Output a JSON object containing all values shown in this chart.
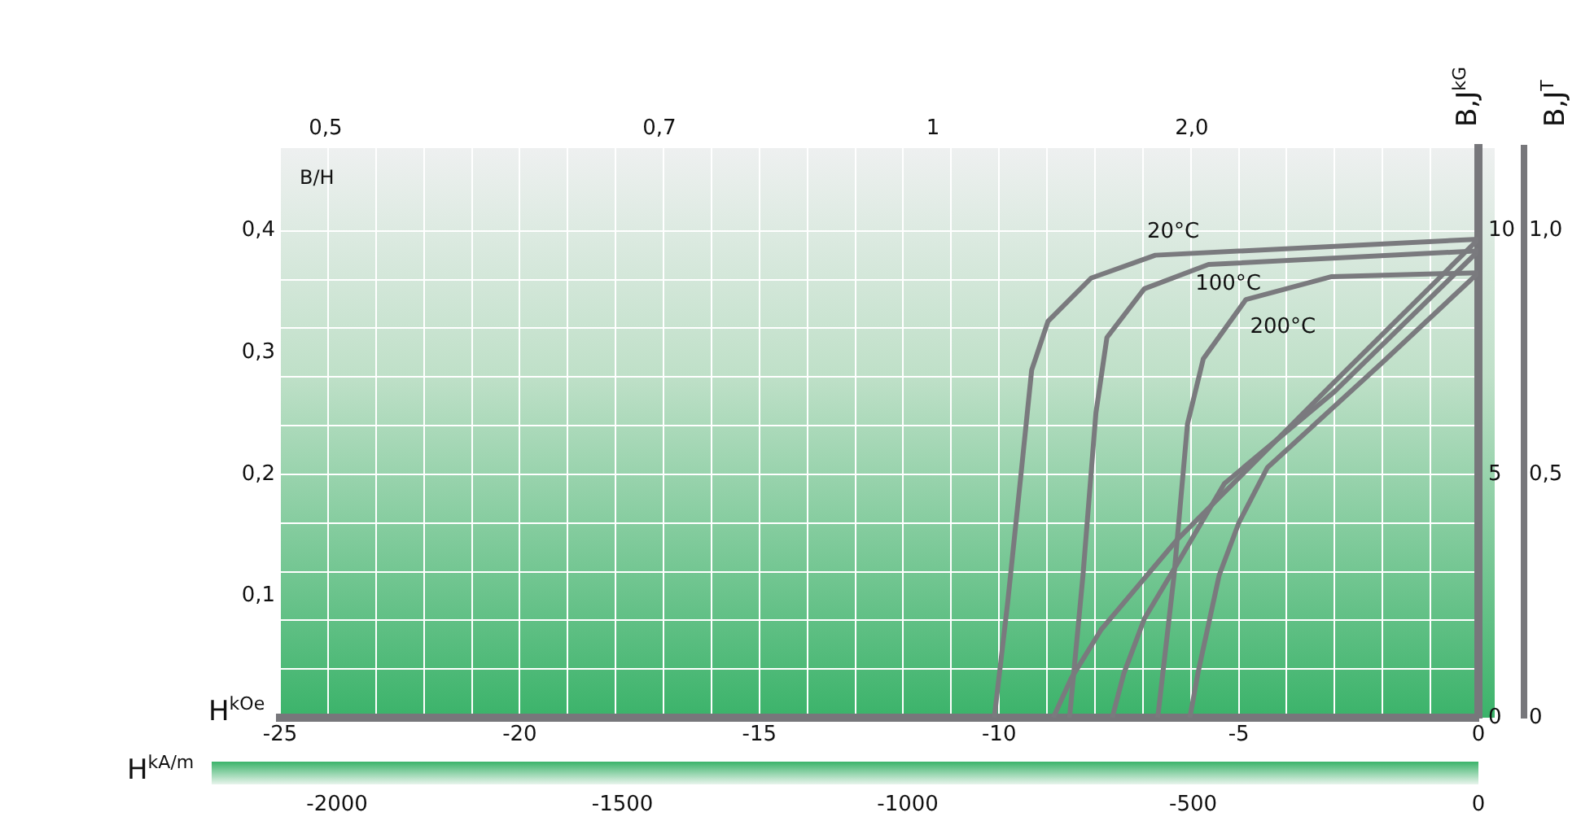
{
  "chart_data": {
    "type": "line",
    "xlabel": "H$^{kOe}$",
    "x2label": "H$^{kA/m}$",
    "annotations": [
      "0,5",
      "0,7",
      "1",
      "2,0"
    ],
    "ylabel": "B,J$^{kG}$",
    "y2label": "B,J$^{T}$",
    "y3label": "B/H",
    "xlim": [
      -25,
      0
    ],
    "xticks": [
      -25,
      {
        "value": -24,
        "label": null
      },
      {
        "value": -23,
        "label": null
      },
      {
        "value": -22,
        "label": null
      },
      {
        "value": -21,
        "label": null
      },
      -20,
      {
        "value": -19,
        "label": null
      },
      {
        "value": -18,
        "label": null
      },
      {
        "value": -17,
        "label": null
      },
      {
        "value": -16,
        "label": null
      },
      -15,
      {
        "value": -14,
        "label": null
      },
      {
        "value": -13,
        "label": null
      },
      {
        "value": -12,
        "label": null
      },
      {
        "value": -11,
        "label": null
      },
      -10,
      {
        "value": -9,
        "label": null
      },
      {
        "value": -8,
        "label": null
      },
      {
        "value": -7,
        "label": null
      },
      {
        "value": -6,
        "label": null
      },
      -5,
      {
        "value": -4,
        "label": null
      },
      {
        "value": -3,
        "label": null
      },
      {
        "value": -2,
        "label": null
      },
      {
        "value": -1,
        "label": null
      },
      0
    ],
    "x2lim": [
      -2100,
      0
    ],
    "x2ticks": [
      -2000,
      -1500,
      -1000,
      -500,
      0
    ],
    "ylim": [
      0,
      11.7
    ],
    "yticks": [
      0,
      {
        "value": 1,
        "label": null
      },
      {
        "value": 2,
        "label": null
      },
      {
        "value": 3,
        "label": null
      },
      {
        "value": 4,
        "label": null
      },
      5,
      {
        "value": 6,
        "label": null
      },
      {
        "value": 7,
        "label": null
      },
      {
        "value": 8,
        "label": null
      },
      {
        "value": 9,
        "label": null
      },
      10
    ],
    "y2lim": [
      0,
      1.17
    ],
    "y2ticks": [
      0,
      {
        "value": 0.5,
        "label": "0,5"
      },
      {
        "value": 1.0,
        "label": "1,0"
      }
    ],
    "y3lim": [
      0,
      0.468
    ],
    "y3ticks": [
      {
        "value": 0.1,
        "label": "0,1"
      },
      {
        "value": 0.2,
        "label": "0,2"
      },
      {
        "value": 0.3,
        "label": "0,3"
      },
      {
        "value": 0.4,
        "label": "0,4"
      }
    ],
    "grid": true,
    "legend": false,
    "marker": "none",
    "line_style": "solid",
    "series": [
      {
        "name": "20°C",
        "color": "#7a7a7e",
        "x": [
          0,
          -6.74,
          -8.08,
          -8.98,
          -9.32,
          -9.55,
          -9.82,
          -10.1
        ],
        "values": [
          9.83,
          9.5,
          9.03,
          8.14,
          7.14,
          4.93,
          2.37,
          0
        ]
      },
      {
        "color": "#7a7a7e",
        "x": [
          0,
          -3,
          -6.3,
          -7.87,
          -8.5,
          -8.87
        ],
        "values": [
          9.83,
          6.9,
          3.64,
          1.81,
          0.8,
          0
        ]
      },
      {
        "name": "100°C",
        "color": "#7a7a7e",
        "x": [
          0,
          -5.63,
          -6.97,
          -7.75,
          -7.98,
          -8.25,
          -8.53
        ],
        "values": [
          9.59,
          9.31,
          8.81,
          7.81,
          6.26,
          2.92,
          0
        ]
      },
      {
        "color": "#7a7a7e",
        "x": [
          0,
          -3,
          -5.3,
          -6.2,
          -6.97,
          -7.4,
          -7.64
        ],
        "values": [
          9.59,
          6.7,
          4.81,
          3.3,
          2.03,
          0.9,
          0
        ]
      },
      {
        "name": "200°C",
        "color": "#7a7a7e",
        "x": [
          0,
          -3.06,
          -4.85,
          -5.74,
          -6.07,
          -6.35,
          -6.69
        ],
        "values": [
          9.14,
          9.06,
          8.59,
          7.37,
          6.03,
          2.92,
          0
        ]
      },
      {
        "color": "#7a7a7e",
        "x": [
          0,
          -2,
          -4.4,
          -5.0,
          -5.41,
          -5.85,
          -6.02
        ],
        "values": [
          9.14,
          7.3,
          5.14,
          4.0,
          2.92,
          0.92,
          0
        ]
      }
    ]
  }
}
